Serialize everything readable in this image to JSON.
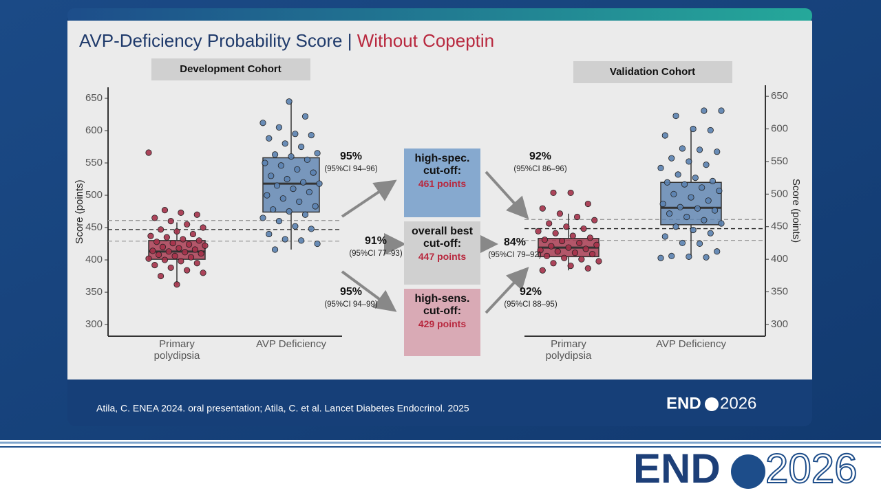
{
  "header": {
    "title": "AVP-Deficiency Probability Score",
    "separator": "|",
    "title_highlight": "Without Copeptin"
  },
  "chart_data": [
    {
      "type": "box",
      "title": "Development Cohort",
      "ylabel": "Score (points)",
      "axis_side": "left",
      "ylim": [
        282,
        667
      ],
      "yticks": [
        300,
        350,
        400,
        450,
        500,
        550,
        600,
        650
      ],
      "categories": [
        "Primary polydipsia",
        "AVP Deficiency"
      ],
      "boxes": [
        {
          "color": "#a5324a",
          "whisker_low": 362,
          "q1": 401,
          "median": 413,
          "q3": 430,
          "whisker_high": 458,
          "points": [
            566,
            477,
            473,
            470,
            465,
            460,
            455,
            450,
            447,
            444,
            440,
            437,
            435,
            432,
            430,
            428,
            426,
            424,
            422,
            420,
            418,
            416,
            414,
            413,
            412,
            410,
            408,
            406,
            404,
            402,
            400,
            398,
            395,
            392,
            388,
            384,
            380,
            375,
            362
          ]
        },
        {
          "color": "#5b82b0",
          "whisker_low": 416,
          "q1": 474,
          "median": 518,
          "q3": 558,
          "whisker_high": 645,
          "points": [
            645,
            622,
            612,
            605,
            595,
            593,
            588,
            580,
            575,
            565,
            563,
            560,
            555,
            550,
            546,
            540,
            535,
            530,
            525,
            520,
            518,
            515,
            510,
            505,
            500,
            495,
            490,
            483,
            478,
            475,
            470,
            465,
            460,
            452,
            448,
            440,
            432,
            430,
            425,
            416
          ]
        }
      ]
    },
    {
      "type": "box",
      "title": "Validation Cohort",
      "ylabel": "Score (points)",
      "axis_side": "right",
      "ylim": [
        282,
        667
      ],
      "yticks": [
        300,
        350,
        400,
        450,
        500,
        550,
        600,
        650
      ],
      "categories": [
        "Primary polydipsia",
        "AVP Deficiency"
      ],
      "boxes": [
        {
          "color": "#a5324a",
          "whisker_low": 383,
          "q1": 404,
          "median": 418,
          "q3": 432,
          "whisker_high": 470,
          "points": [
            502,
            502,
            485,
            478,
            470,
            465,
            460,
            455,
            450,
            447,
            443,
            440,
            436,
            433,
            430,
            428,
            425,
            422,
            420,
            418,
            416,
            414,
            412,
            410,
            408,
            405,
            402,
            400,
            397,
            394,
            390,
            386,
            383
          ]
        },
        {
          "color": "#5b82b0",
          "whisker_low": 405,
          "q1": 453,
          "median": 479,
          "q3": 518,
          "whisker_high": 600,
          "points": [
            628,
            628,
            620,
            600,
            598,
            590,
            570,
            568,
            565,
            555,
            550,
            545,
            540,
            530,
            525,
            520,
            518,
            515,
            510,
            505,
            500,
            495,
            490,
            485,
            480,
            478,
            475,
            470,
            465,
            460,
            455,
            450,
            445,
            440,
            435,
            425,
            424,
            412,
            405,
            404,
            403,
            402
          ]
        }
      ]
    }
  ],
  "cutoffs": [
    {
      "label": "high-spec. cut-off:",
      "value": 461,
      "value_label": "461 points",
      "color": "#86a9cf"
    },
    {
      "label": "overall best cut-off:",
      "value": 447,
      "value_label": "447 points",
      "color": "#d0d0d0"
    },
    {
      "label": "high-sens. cut-off:",
      "value": 429,
      "value_label": "429 points",
      "color": "#d9aab5"
    }
  ],
  "performance_development": [
    {
      "pct": "95%",
      "ci": "(95%CI 94–96)"
    },
    {
      "pct": "91%",
      "ci": "(95%CI 77–93)"
    },
    {
      "pct": "95%",
      "ci": "(95%CI 94–99)"
    }
  ],
  "performance_validation": [
    {
      "pct": "92%",
      "ci": "(95%CI 86–96)"
    },
    {
      "pct": "84%",
      "ci": "(95%CI 79–92)"
    },
    {
      "pct": "92%",
      "ci": "(95%CI 88–95)"
    }
  ],
  "footer": {
    "citation": "Atila, C. ENEA 2024. oral presentation; Atila, C. et al. Lancet Diabetes Endocrinol. 2025",
    "logo_left": "END",
    "logo_right": "2026"
  }
}
